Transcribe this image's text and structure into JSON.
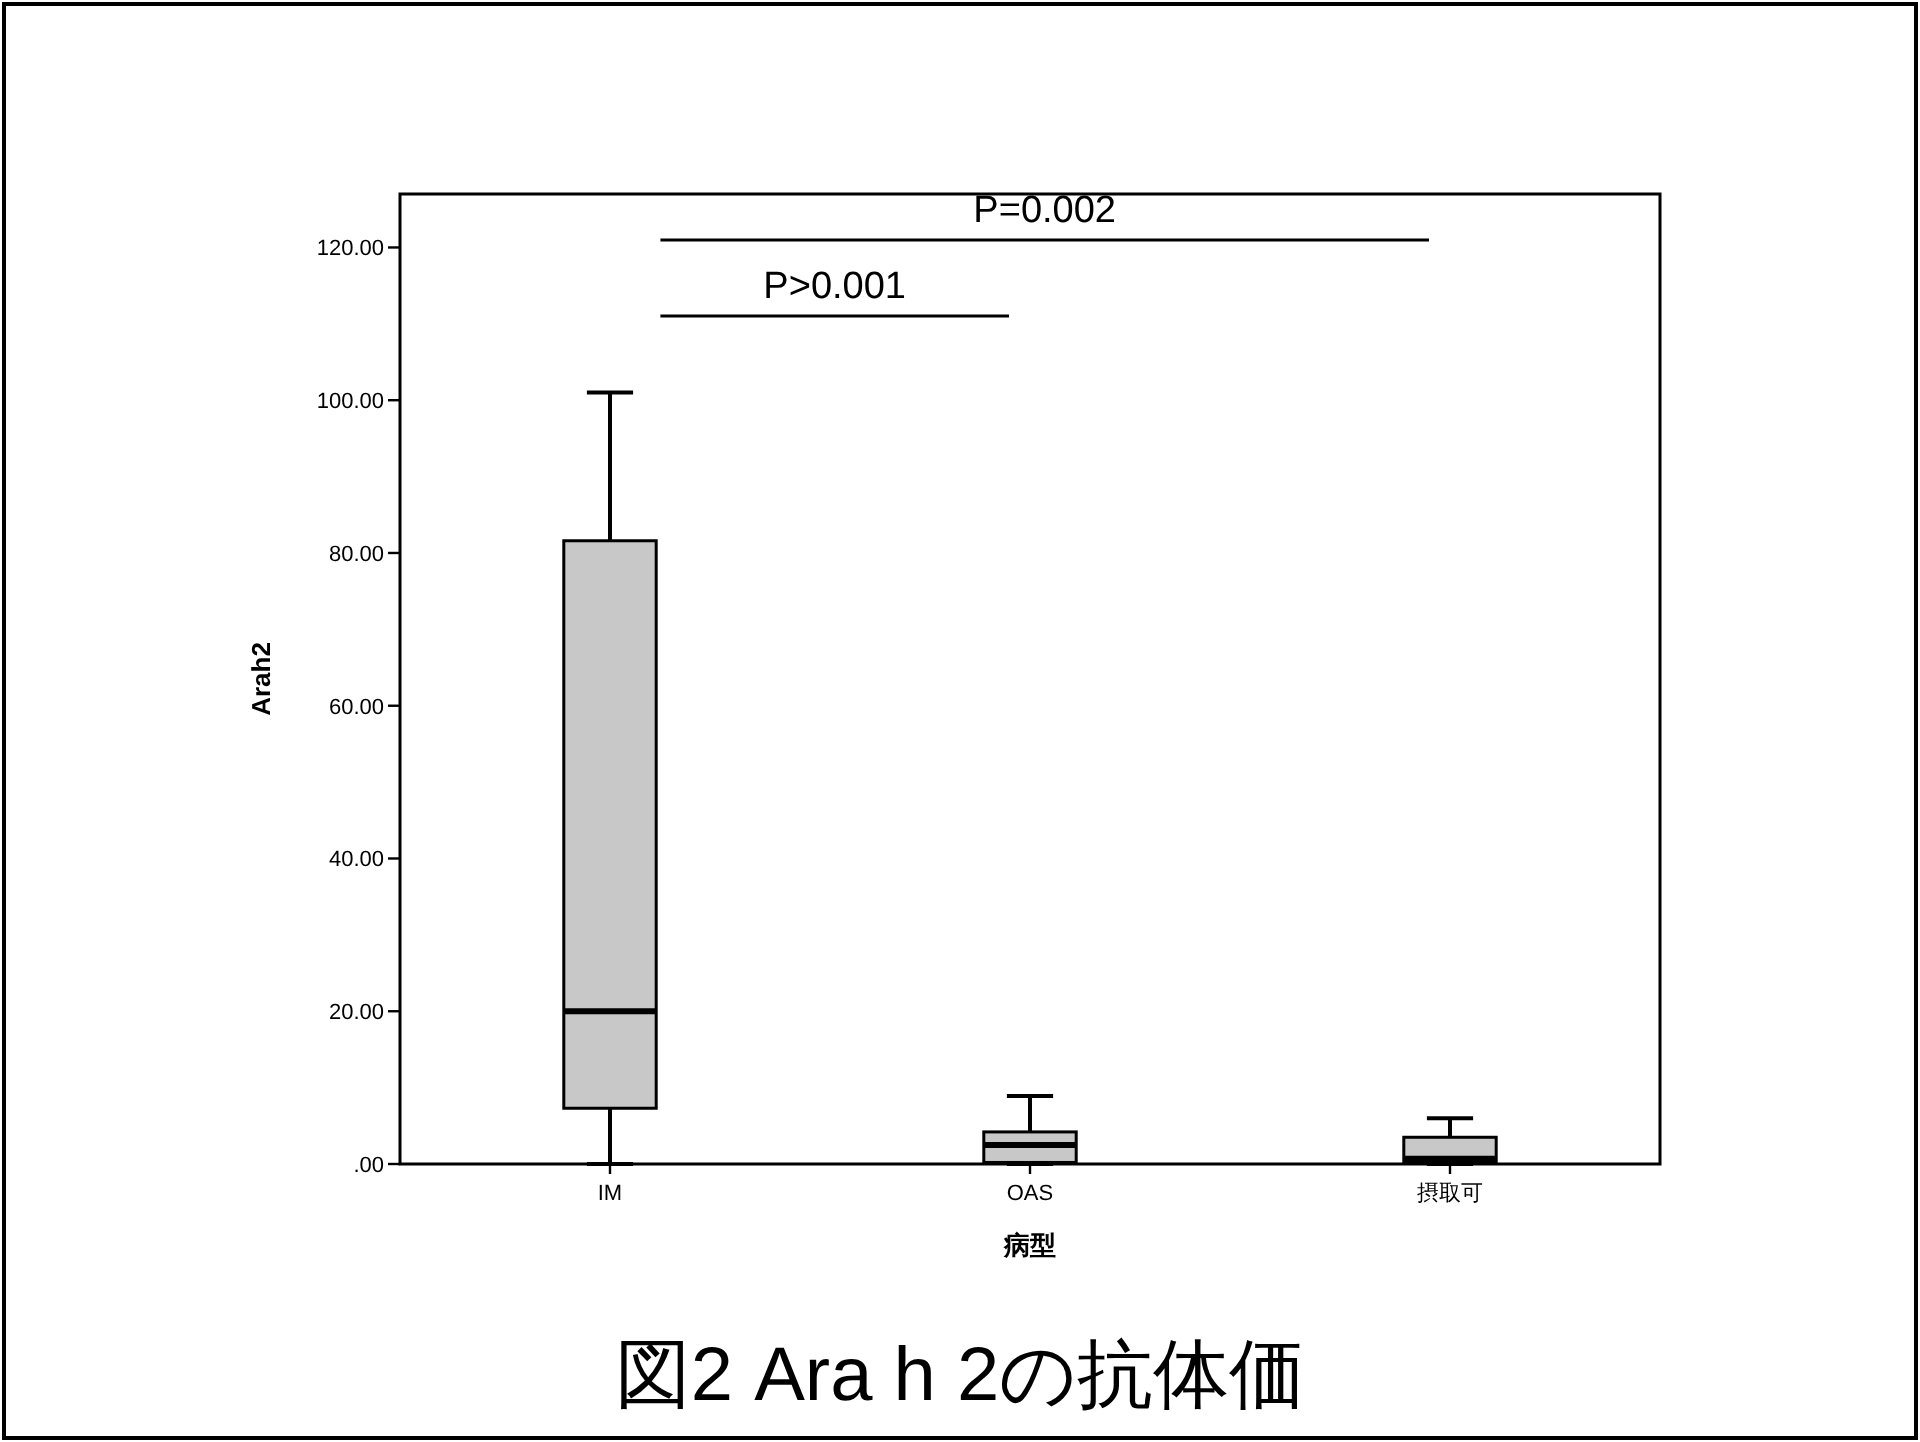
{
  "chart_data": {
    "type": "box",
    "title": "図2 Ara h 2の抗体価",
    "xlabel": "病型",
    "ylabel": "Arah2",
    "categories": [
      "IM",
      "OAS",
      "摂取可"
    ],
    "boxes": [
      {
        "low": 0,
        "q1": 7.3,
        "median": 20,
        "q3": 81.6,
        "high": 101
      },
      {
        "low": 0,
        "q1": 0.2,
        "median": 2.5,
        "q3": 4.2,
        "high": 8.9
      },
      {
        "low": 0,
        "q1": 0.2,
        "median": 0.7,
        "q3": 3.5,
        "high": 6
      }
    ],
    "color": "#c8c8c8",
    "ylim": [
      0,
      127
    ],
    "yticks": [
      {
        "value": 0,
        "label": ".00"
      },
      {
        "value": 20,
        "label": "20.00"
      },
      {
        "value": 40,
        "label": "40.00"
      },
      {
        "value": 60,
        "label": "60.00"
      },
      {
        "value": 80,
        "label": "80.00"
      },
      {
        "value": 100,
        "label": "100.00"
      },
      {
        "value": 120,
        "label": "120.00"
      }
    ],
    "annotations": [
      "P>0.001",
      "P=0.002"
    ]
  }
}
